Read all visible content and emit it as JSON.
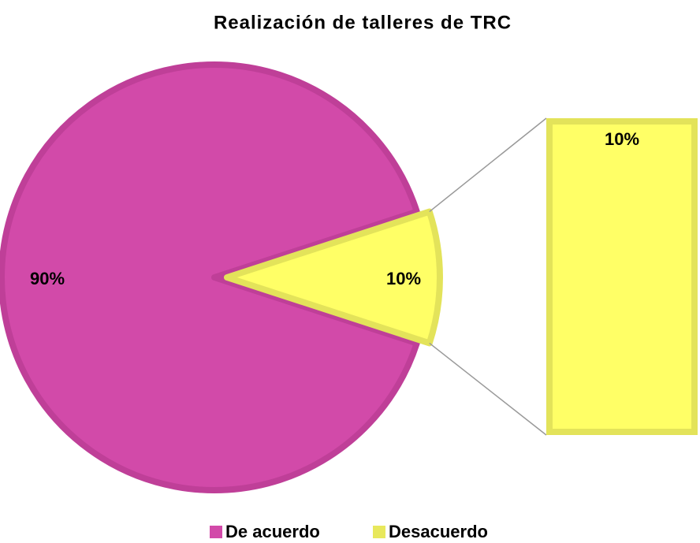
{
  "chart_data": {
    "type": "pie-of-bar",
    "title": "Realización de talleres de TRC",
    "categories": [
      "De acuerdo",
      "Desacuerdo"
    ],
    "values": [
      90,
      10
    ],
    "value_labels": [
      "90%",
      "10%"
    ],
    "colors": [
      "#d24aa9",
      "#ffff66"
    ],
    "legend": "bottom"
  }
}
